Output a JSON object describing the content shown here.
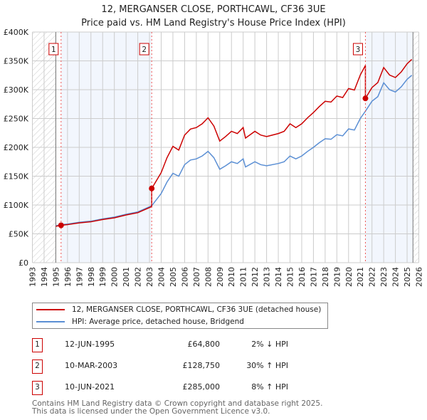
{
  "chart_data": {
    "type": "line",
    "title": "12, MERGANSER CLOSE, PORTHCAWL, CF36 3UE",
    "subtitle": "Price paid vs. HM Land Registry's House Price Index (HPI)",
    "xlim": [
      1993,
      2026
    ],
    "ylim": [
      0,
      400000
    ],
    "x_ticks": [
      "1993",
      "1994",
      "1995",
      "1996",
      "1997",
      "1998",
      "1999",
      "2000",
      "2001",
      "2002",
      "2003",
      "2004",
      "2005",
      "2006",
      "2007",
      "2008",
      "2009",
      "2010",
      "2011",
      "2012",
      "2013",
      "2014",
      "2015",
      "2016",
      "2017",
      "2018",
      "2019",
      "2020",
      "2021",
      "2022",
      "2023",
      "2024",
      "2025",
      "2026"
    ],
    "y_ticks": [
      {
        "v": 0,
        "label": "£0"
      },
      {
        "v": 50000,
        "label": "£50K"
      },
      {
        "v": 100000,
        "label": "£100K"
      },
      {
        "v": 150000,
        "label": "£150K"
      },
      {
        "v": 200000,
        "label": "£200K"
      },
      {
        "v": 250000,
        "label": "£250K"
      },
      {
        "v": 300000,
        "label": "£300K"
      },
      {
        "v": 350000,
        "label": "£350K"
      },
      {
        "v": 400000,
        "label": "£400K"
      }
    ],
    "data_start": 1995.0,
    "data_end": 2025.5,
    "hpi_series": {
      "name": "HPI: Average price, detached house, Bridgend",
      "color": "#5b8fd4",
      "x": [
        1995.0,
        1995.5,
        1996,
        1997,
        1998,
        1999,
        2000,
        2001,
        2002,
        2003.0,
        2003.2,
        2004,
        2004.5,
        2005,
        2005.5,
        2006,
        2006.5,
        2007,
        2007.5,
        2008,
        2008.5,
        2009,
        2009.5,
        2010,
        2010.5,
        2011,
        2011.2,
        2012,
        2012.5,
        2013,
        2014,
        2014.5,
        2015,
        2015.5,
        2016,
        2016.5,
        2017,
        2017.5,
        2018,
        2018.5,
        2019,
        2019.5,
        2020,
        2020.5,
        2021,
        2021.45,
        2022,
        2022.5,
        2023,
        2023.5,
        2024,
        2024.5,
        2025,
        2025.4
      ],
      "y": [
        64000,
        66000,
        67000,
        70000,
        72000,
        76000,
        79000,
        84000,
        88000,
        97000,
        99000,
        120000,
        140000,
        155000,
        150000,
        170000,
        178000,
        180000,
        185000,
        193000,
        182000,
        162000,
        168000,
        175000,
        172000,
        180000,
        166000,
        175000,
        170000,
        168000,
        172000,
        175000,
        185000,
        180000,
        185000,
        193000,
        200000,
        208000,
        215000,
        214000,
        222000,
        220000,
        232000,
        230000,
        250000,
        263000,
        280000,
        288000,
        312000,
        300000,
        296000,
        305000,
        318000,
        325000
      ]
    },
    "property_series": {
      "name": "12, MERGANSER CLOSE, PORTHCAWL, CF36 3UE (detached house)",
      "color": "#cc0000"
    },
    "sales": [
      {
        "id": "1",
        "x": 1995.45,
        "date": "12-JUN-1995",
        "price": 64800,
        "price_label": "£64,800",
        "hpi": "2% ↓ HPI"
      },
      {
        "id": "2",
        "x": 2003.19,
        "date": "10-MAR-2003",
        "price": 128750,
        "price_label": "£128,750",
        "hpi": "30% ↑ HPI"
      },
      {
        "id": "3",
        "x": 2021.44,
        "date": "10-JUN-2021",
        "price": 285000,
        "price_label": "£285,000",
        "hpi": "8% ↑ HPI"
      }
    ]
  },
  "footer": {
    "line1": "Contains HM Land Registry data © Crown copyright and database right 2025.",
    "line2": "This data is licensed under the Open Government Licence v3.0."
  }
}
